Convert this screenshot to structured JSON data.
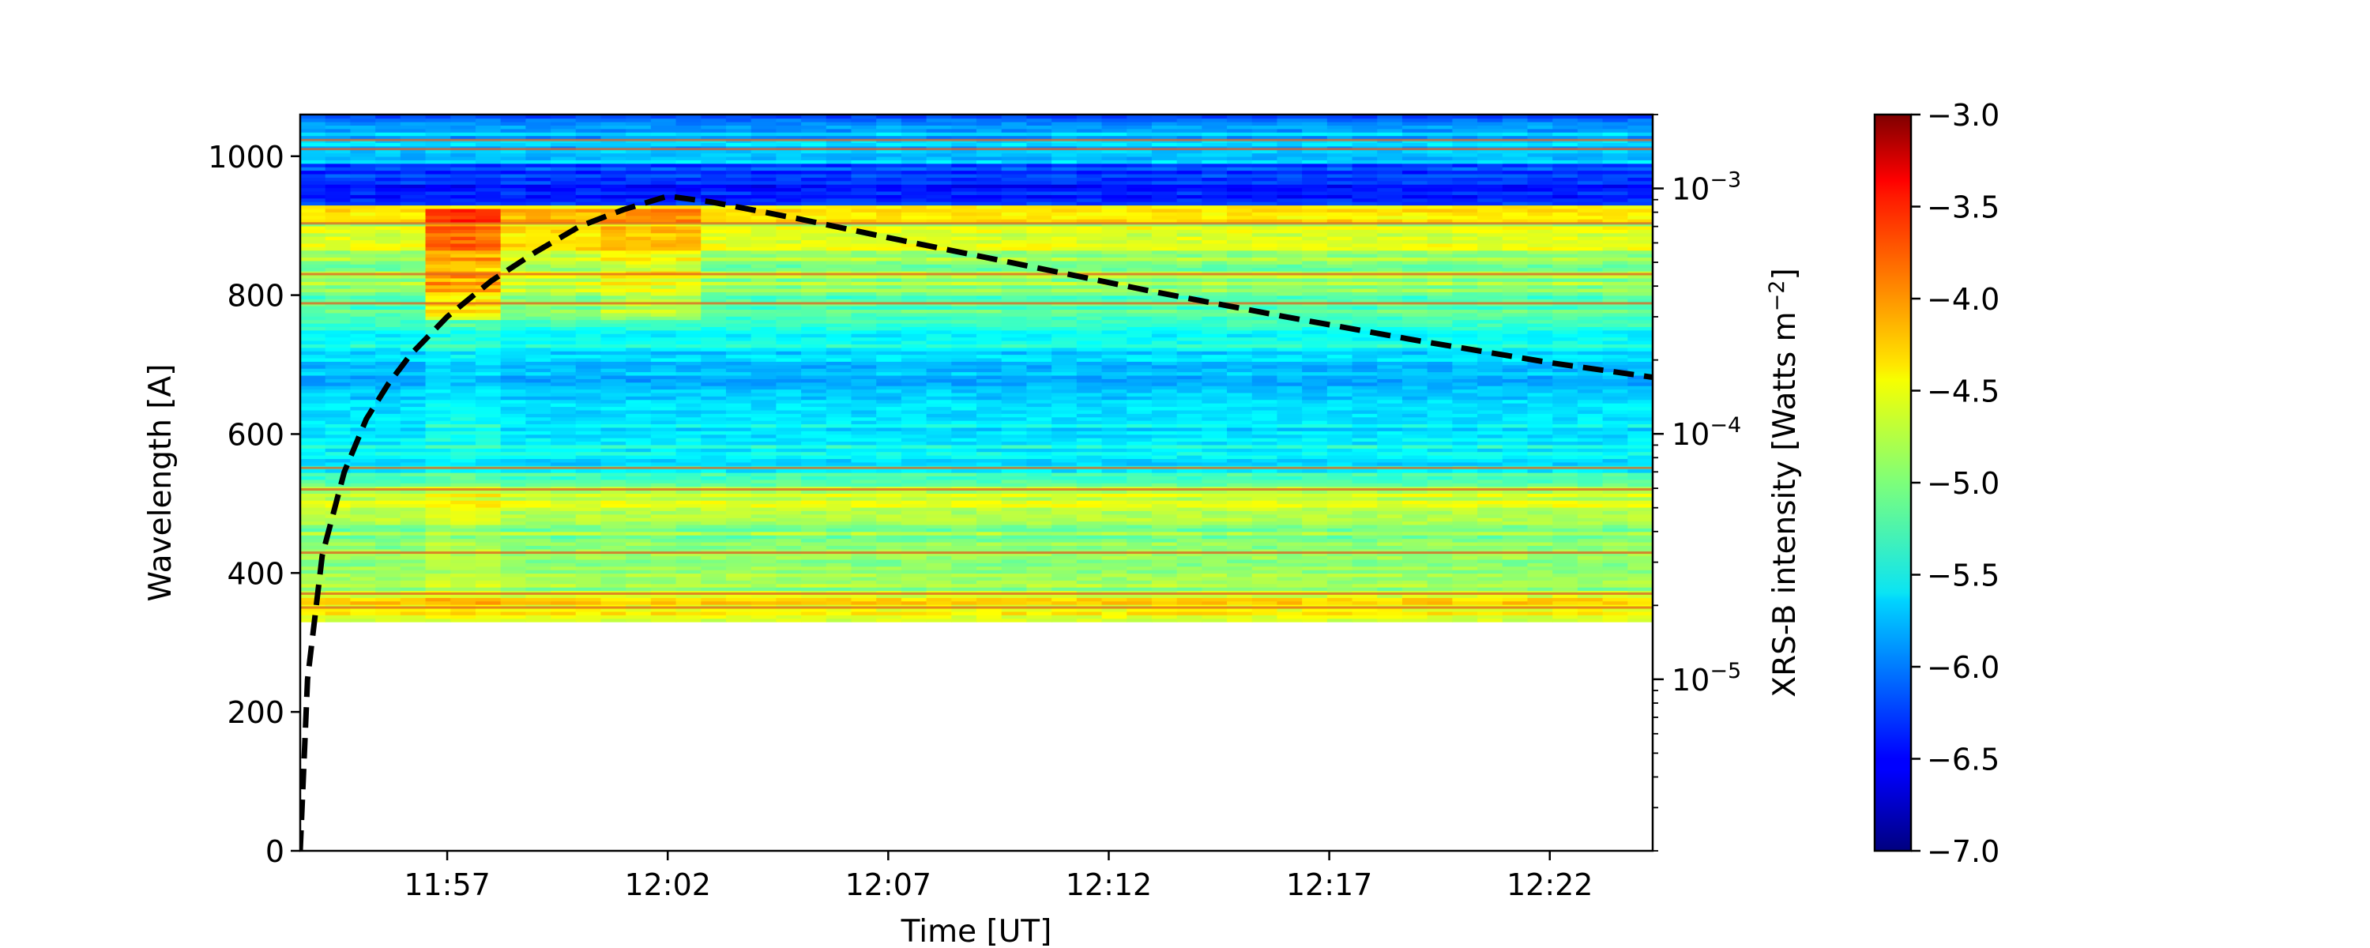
{
  "chart_data": {
    "type": "heatmap",
    "x_axis": {
      "label": "Time [UT]",
      "ticks": [
        "11:57",
        "12:02",
        "12:07",
        "12:12",
        "12:17",
        "12:22"
      ],
      "range": [
        "11:53:40",
        "12:24:20"
      ]
    },
    "y_axis_left": {
      "label": "Wavelength [A]",
      "ticks": [
        0,
        200,
        400,
        600,
        800,
        1000
      ],
      "range": [
        0,
        1060
      ]
    },
    "y_axis_right": {
      "label": "XRS-B intensity [Watts m",
      "label_sup": "−2",
      "label_close": "]",
      "scale": "log",
      "range": [
        2e-06,
        0.002
      ],
      "ticks": [
        {
          "value": 1e-05,
          "base": "10",
          "exp": "−5"
        },
        {
          "value": 0.0001,
          "base": "10",
          "exp": "−4"
        },
        {
          "value": 0.001,
          "base": "10",
          "exp": "−3"
        }
      ]
    },
    "heatmap": {
      "wavelength_range": [
        330,
        1060
      ],
      "colormap": "jet",
      "value_range": [
        -7.0,
        -3.0
      ]
    },
    "colorbar": {
      "ticks": [
        "−3.0",
        "−3.5",
        "−4.0",
        "−4.5",
        "−5.0",
        "−5.5",
        "−6.0",
        "−6.5",
        "−7.0"
      ],
      "range": [
        -7.0,
        -3.0
      ]
    },
    "xrs_curve": {
      "style": "dashed",
      "color": "#000000",
      "points": [
        {
          "t": "11:53:40",
          "v": 2e-06
        },
        {
          "t": "11:53:50",
          "v": 1e-05
        },
        {
          "t": "11:54:10",
          "v": 3.2e-05
        },
        {
          "t": "11:54:40",
          "v": 7e-05
        },
        {
          "t": "11:55:10",
          "v": 0.000115
        },
        {
          "t": "11:55:40",
          "v": 0.00016
        },
        {
          "t": "11:56:10",
          "v": 0.00021
        },
        {
          "t": "11:57:00",
          "v": 0.0003
        },
        {
          "t": "11:58:00",
          "v": 0.00042
        },
        {
          "t": "11:59:00",
          "v": 0.00055
        },
        {
          "t": "12:00:00",
          "v": 0.0007
        },
        {
          "t": "12:01:00",
          "v": 0.00082
        },
        {
          "t": "12:02:00",
          "v": 0.00093
        },
        {
          "t": "12:03:00",
          "v": 0.00088
        },
        {
          "t": "12:05:00",
          "v": 0.00075
        },
        {
          "t": "12:07:00",
          "v": 0.00063
        },
        {
          "t": "12:10:00",
          "v": 0.00049
        },
        {
          "t": "12:13:00",
          "v": 0.00038
        },
        {
          "t": "12:16:00",
          "v": 0.0003
        },
        {
          "t": "12:19:00",
          "v": 0.00024
        },
        {
          "t": "12:22:00",
          "v": 0.000195
        },
        {
          "t": "12:24:20",
          "v": 0.00017
        }
      ]
    }
  }
}
